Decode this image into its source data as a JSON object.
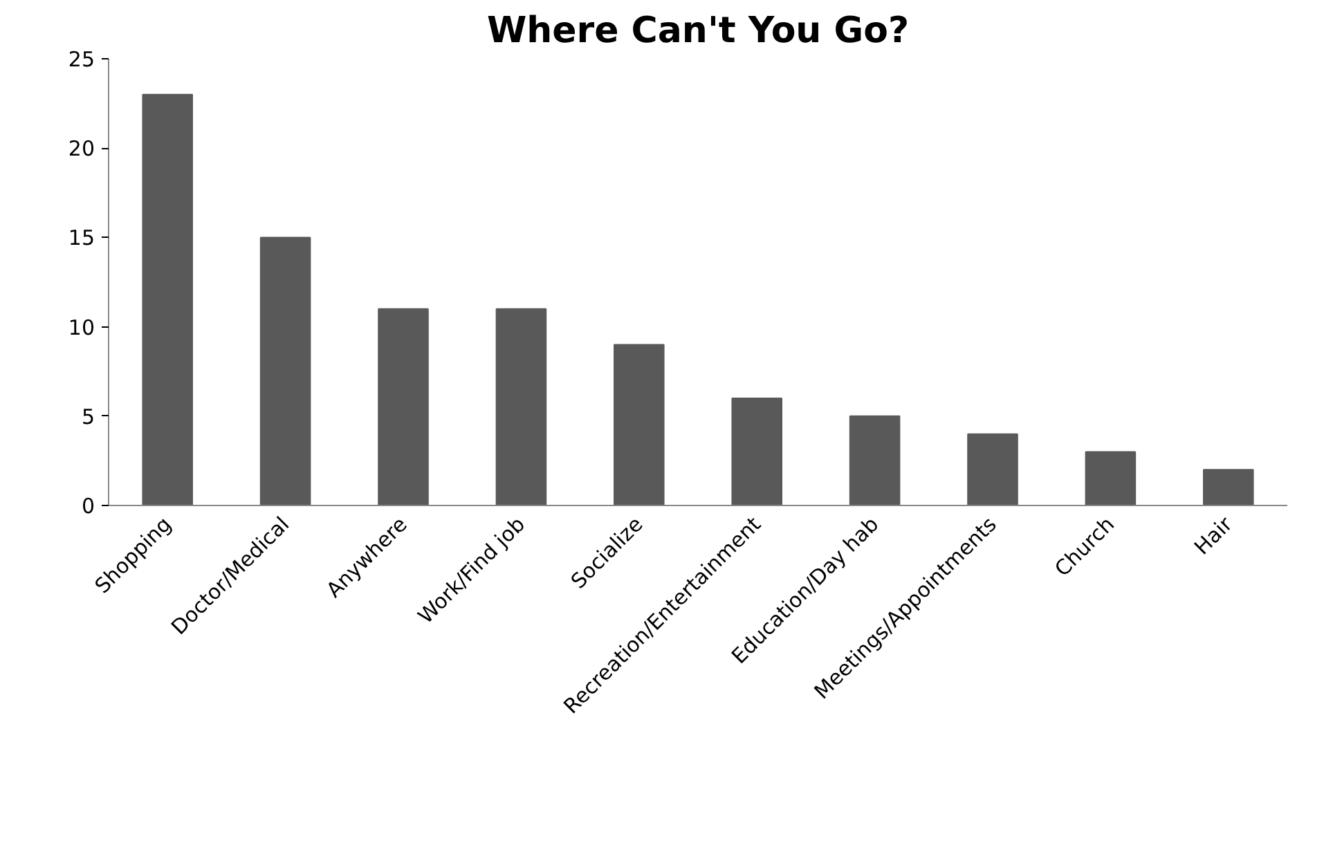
{
  "chart_data": {
    "type": "bar",
    "title": "Where Can't You Go?",
    "categories": [
      "Shopping",
      "Doctor/Medical",
      "Anywhere",
      "Work/Find job",
      "Socialize",
      "Recreation/Entertainment",
      "Education/Day hab",
      "Meetings/Appointments",
      "Church",
      "Hair"
    ],
    "values": [
      23,
      15,
      11,
      11,
      9,
      6,
      5,
      4,
      3,
      2
    ],
    "color": "#595959",
    "ylim": [
      0,
      25
    ],
    "yticks": [
      0,
      5,
      10,
      15,
      20,
      25
    ],
    "grid": false
  }
}
